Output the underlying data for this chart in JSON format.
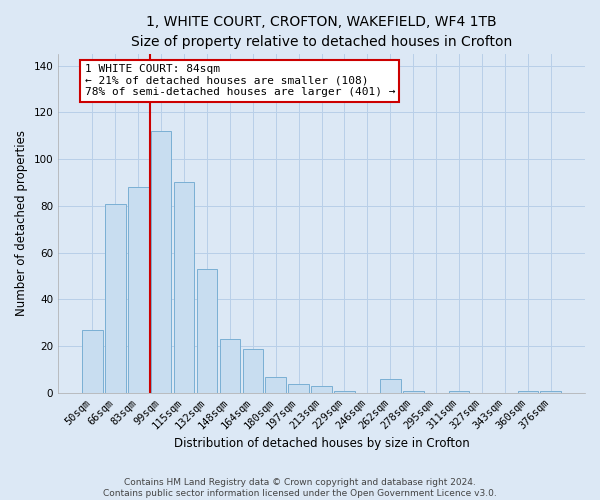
{
  "title": "1, WHITE COURT, CROFTON, WAKEFIELD, WF4 1TB",
  "subtitle": "Size of property relative to detached houses in Crofton",
  "xlabel": "Distribution of detached houses by size in Crofton",
  "ylabel": "Number of detached properties",
  "bar_labels": [
    "50sqm",
    "66sqm",
    "83sqm",
    "99sqm",
    "115sqm",
    "132sqm",
    "148sqm",
    "164sqm",
    "180sqm",
    "197sqm",
    "213sqm",
    "229sqm",
    "246sqm",
    "262sqm",
    "278sqm",
    "295sqm",
    "311sqm",
    "327sqm",
    "343sqm",
    "360sqm",
    "376sqm"
  ],
  "bar_values": [
    27,
    81,
    88,
    112,
    90,
    53,
    23,
    19,
    7,
    4,
    3,
    1,
    0,
    6,
    1,
    0,
    1,
    0,
    0,
    1,
    1
  ],
  "bar_color": "#c8ddf0",
  "bar_edgecolor": "#7aafd4",
  "vline_x": 2.5,
  "vline_color": "#cc0000",
  "ylim": [
    0,
    145
  ],
  "yticks": [
    0,
    20,
    40,
    60,
    80,
    100,
    120,
    140
  ],
  "annotation_title": "1 WHITE COURT: 84sqm",
  "annotation_line1": "← 21% of detached houses are smaller (108)",
  "annotation_line2": "78% of semi-detached houses are larger (401) →",
  "annotation_box_color": "#ffffff",
  "annotation_box_edgecolor": "#cc0000",
  "footer_line1": "Contains HM Land Registry data © Crown copyright and database right 2024.",
  "footer_line2": "Contains public sector information licensed under the Open Government Licence v3.0.",
  "background_color": "#dce8f5",
  "plot_background_color": "#dce8f5",
  "grid_color": "#b8cfe8",
  "title_fontsize": 10,
  "subtitle_fontsize": 9,
  "axis_label_fontsize": 8.5,
  "tick_fontsize": 7.5,
  "footer_fontsize": 6.5
}
